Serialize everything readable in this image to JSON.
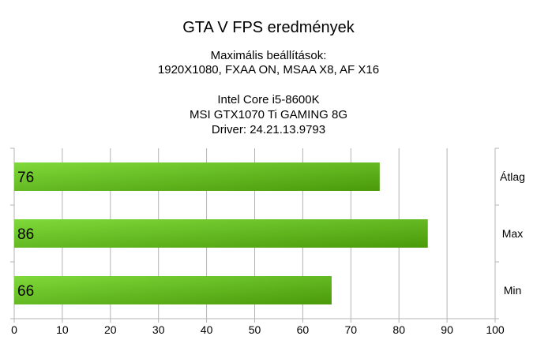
{
  "chart_data": {
    "type": "bar",
    "orientation": "horizontal",
    "title": "GTA V FPS eredmények",
    "subtitle_lines": [
      "Maximális beállítások:",
      "1920X1080, FXAA ON, MSAA X8, AF X16",
      "",
      "Intel Core i5-8600K",
      "MSI GTX1070 Ti GAMING 8G",
      "Driver: 24.21.13.9793"
    ],
    "categories": [
      "Átlag",
      "Max",
      "Min"
    ],
    "values": [
      76,
      86,
      66
    ],
    "xlim": [
      0,
      100
    ],
    "xticks": [
      0,
      10,
      20,
      30,
      40,
      50,
      60,
      70,
      80,
      90,
      100
    ],
    "grid": true,
    "category_labels_position": "right",
    "bar_gradient": [
      "#7fd93a",
      "#4a9a0a"
    ]
  }
}
